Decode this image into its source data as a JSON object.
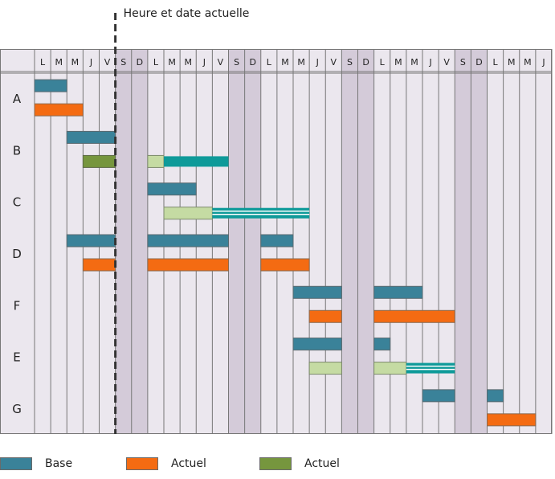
{
  "chart_data": {
    "type": "gantt",
    "now_label": "Heure et date actuelle",
    "day_labels": [
      "L",
      "M",
      "M",
      "J",
      "V",
      "S",
      "D",
      "L",
      "M",
      "M",
      "J",
      "V",
      "S",
      "D",
      "L",
      "M",
      "M",
      "J",
      "V",
      "S",
      "D",
      "L",
      "M",
      "M",
      "J",
      "V",
      "S",
      "D",
      "L",
      "M",
      "M",
      "J"
    ],
    "weekend_days": [
      5,
      6,
      12,
      13,
      19,
      20,
      26,
      27
    ],
    "now_day": 5,
    "rows": [
      {
        "label": "A",
        "bars": [
          {
            "kind": "base",
            "start": 0,
            "end": 2
          },
          {
            "kind": "actual",
            "start": 0,
            "end": 3
          }
        ]
      },
      {
        "label": "B",
        "bars": [
          {
            "kind": "base",
            "start": 2,
            "end": 5
          },
          {
            "kind": "done",
            "start": 3,
            "end": 5
          },
          {
            "kind": "future",
            "start": 7,
            "end": 8
          },
          {
            "kind": "teal",
            "start": 8,
            "end": 12
          }
        ]
      },
      {
        "label": "C",
        "bars": [
          {
            "kind": "base",
            "start": 7,
            "end": 10
          },
          {
            "kind": "future",
            "start": 8,
            "end": 11
          },
          {
            "kind": "slack",
            "start": 11,
            "end": 17
          }
        ]
      },
      {
        "label": "D",
        "bars": [
          {
            "kind": "base",
            "start": 2,
            "end": 5
          },
          {
            "kind": "base",
            "start": 7,
            "end": 12
          },
          {
            "kind": "base",
            "start": 14,
            "end": 16
          },
          {
            "kind": "actual",
            "start": 3,
            "end": 5
          },
          {
            "kind": "actual",
            "start": 7,
            "end": 12
          },
          {
            "kind": "actual",
            "start": 14,
            "end": 17
          }
        ]
      },
      {
        "label": "F",
        "bars": [
          {
            "kind": "base",
            "start": 16,
            "end": 19
          },
          {
            "kind": "base",
            "start": 21,
            "end": 24
          },
          {
            "kind": "actual",
            "start": 17,
            "end": 19
          },
          {
            "kind": "actual",
            "start": 21,
            "end": 26
          }
        ]
      },
      {
        "label": "E",
        "bars": [
          {
            "kind": "base",
            "start": 16,
            "end": 19
          },
          {
            "kind": "base",
            "start": 21,
            "end": 22
          },
          {
            "kind": "future",
            "start": 17,
            "end": 19
          },
          {
            "kind": "future",
            "start": 21,
            "end": 23
          },
          {
            "kind": "slack",
            "start": 23,
            "end": 26
          }
        ]
      },
      {
        "label": "G",
        "bars": [
          {
            "kind": "base",
            "start": 24,
            "end": 26
          },
          {
            "kind": "base",
            "start": 28,
            "end": 29
          },
          {
            "kind": "actual",
            "start": 28,
            "end": 31
          }
        ]
      }
    ],
    "legend": [
      {
        "label": "Base",
        "color": "#3a8299"
      },
      {
        "label": "Actuel",
        "color": "#f46b12"
      },
      {
        "label": "Actuel",
        "color": "#76963e"
      }
    ]
  },
  "colors": {
    "base": "#3a8299",
    "actual": "#f46b12",
    "done": "#76963e",
    "future": "#c5dba3",
    "teal": "#0e9a99",
    "weekday_bg": "#ebe7ee",
    "weekend_bg": "#d4cbd9",
    "grid": "#777777"
  }
}
